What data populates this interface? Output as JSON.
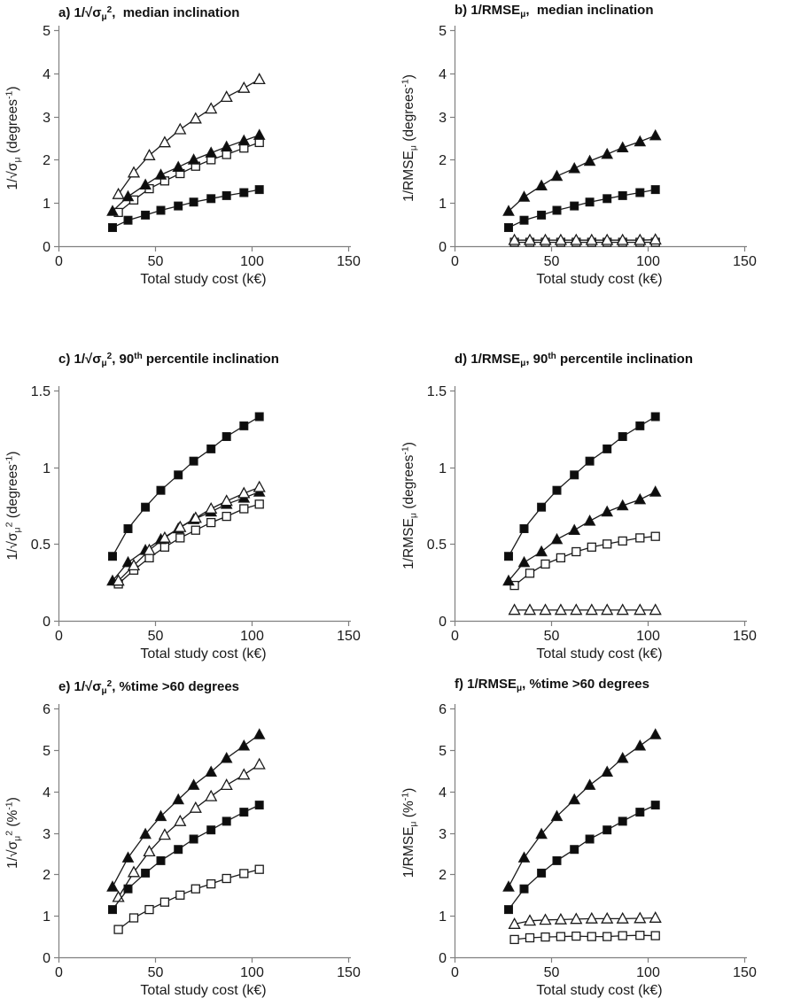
{
  "figure_background": "#ffffff",
  "colors": {
    "series_line": "#1a1a1a",
    "marker_filled": "#0d0d0d",
    "marker_open_fill": "#ffffff",
    "marker_stroke": "#1a1a1a",
    "axis_line": "#808080",
    "text": "#1a1a1a"
  },
  "chart_data": [
    {
      "id": "a",
      "type": "line",
      "title": "a) 1/√σμ²,  median inclination",
      "title_parts": [
        {
          "t": "a) 1/√σ"
        },
        {
          "t": "μ",
          "s": "sub"
        },
        {
          "t": "2",
          "s": "sup"
        },
        {
          "t": ",  median inclination"
        }
      ],
      "xlabel": "Total study cost (k€)",
      "ylabel": "1/√σμ (degrees⁻¹)",
      "ylabel_parts": [
        {
          "t": "1/√σ"
        },
        {
          "t": "μ",
          "s": "sub"
        },
        {
          "t": " (degrees"
        },
        {
          "t": "-1",
          "s": "sup"
        },
        {
          "t": ")"
        }
      ],
      "xlim": [
        0,
        150
      ],
      "xticks": [
        0,
        50,
        100,
        150
      ],
      "ylim": [
        0,
        5
      ],
      "yticks": [
        0,
        1,
        2,
        3,
        4,
        5
      ],
      "grid": false,
      "legend": "none",
      "series": [
        {
          "name": "open-square",
          "marker": "square",
          "fill": "open",
          "x": [
            31,
            39,
            47,
            55,
            63,
            71,
            79,
            87,
            96,
            104
          ],
          "y": [
            0.78,
            1.07,
            1.33,
            1.51,
            1.68,
            1.85,
            2.0,
            2.12,
            2.27,
            2.4
          ]
        },
        {
          "name": "open-triangle",
          "marker": "triangle",
          "fill": "open",
          "x": [
            31,
            39,
            47,
            55,
            63,
            71,
            79,
            87,
            96,
            104
          ],
          "y": [
            1.2,
            1.7,
            2.1,
            2.4,
            2.7,
            2.95,
            3.18,
            3.45,
            3.66,
            3.86
          ]
        },
        {
          "name": "filled-square",
          "marker": "square",
          "fill": "filled",
          "x": [
            28,
            36,
            45,
            53,
            62,
            70,
            79,
            87,
            96,
            104
          ],
          "y": [
            0.43,
            0.6,
            0.72,
            0.83,
            0.93,
            1.02,
            1.1,
            1.17,
            1.24,
            1.31
          ]
        },
        {
          "name": "filled-triangle",
          "marker": "triangle",
          "fill": "filled",
          "x": [
            28,
            36,
            45,
            53,
            62,
            70,
            79,
            87,
            96,
            104
          ],
          "y": [
            0.81,
            1.15,
            1.42,
            1.65,
            1.83,
            2.0,
            2.16,
            2.3,
            2.44,
            2.57
          ]
        }
      ]
    },
    {
      "id": "b",
      "type": "line",
      "title": "b) 1/RMSEμ,  median inclination",
      "title_parts": [
        {
          "t": "b) 1/RMSE"
        },
        {
          "t": "μ",
          "s": "sub"
        },
        {
          "t": ",  median inclination"
        }
      ],
      "xlabel": "Total study cost (k€)",
      "ylabel": "1/RMSEμ (degrees⁻¹)",
      "ylabel_parts": [
        {
          "t": "1/RMSE"
        },
        {
          "t": "μ",
          "s": "sub"
        },
        {
          "t": " (degrees"
        },
        {
          "t": "-1",
          "s": "sup"
        },
        {
          "t": ")"
        }
      ],
      "xlim": [
        0,
        150
      ],
      "xticks": [
        0,
        50,
        100,
        150
      ],
      "ylim": [
        0,
        5
      ],
      "yticks": [
        0,
        1,
        2,
        3,
        4,
        5
      ],
      "grid": false,
      "legend": "none",
      "series": [
        {
          "name": "open-square",
          "marker": "square",
          "fill": "open",
          "x": [
            31,
            39,
            47,
            55,
            63,
            71,
            79,
            87,
            96,
            104
          ],
          "y": [
            0.09,
            0.09,
            0.09,
            0.09,
            0.09,
            0.09,
            0.09,
            0.09,
            0.09,
            0.09
          ]
        },
        {
          "name": "open-triangle",
          "marker": "triangle",
          "fill": "open",
          "x": [
            31,
            39,
            47,
            55,
            63,
            71,
            79,
            87,
            96,
            104
          ],
          "y": [
            0.14,
            0.14,
            0.14,
            0.14,
            0.14,
            0.14,
            0.14,
            0.14,
            0.14,
            0.15
          ]
        },
        {
          "name": "filled-square",
          "marker": "square",
          "fill": "filled",
          "x": [
            28,
            36,
            45,
            53,
            62,
            70,
            79,
            87,
            96,
            104
          ],
          "y": [
            0.43,
            0.6,
            0.72,
            0.83,
            0.93,
            1.02,
            1.1,
            1.17,
            1.24,
            1.31
          ]
        },
        {
          "name": "filled-triangle",
          "marker": "triangle",
          "fill": "filled",
          "x": [
            28,
            36,
            45,
            53,
            62,
            70,
            79,
            87,
            96,
            104
          ],
          "y": [
            0.81,
            1.14,
            1.4,
            1.62,
            1.8,
            1.97,
            2.13,
            2.28,
            2.42,
            2.56
          ]
        }
      ]
    },
    {
      "id": "c",
      "type": "line",
      "title": "c) 1/√σμ², 90th percentile inclination",
      "title_parts": [
        {
          "t": "c) 1/√σ"
        },
        {
          "t": "μ",
          "s": "sub"
        },
        {
          "t": "2",
          "s": "sup"
        },
        {
          "t": ", 90"
        },
        {
          "t": "th",
          "s": "sup"
        },
        {
          "t": " percentile inclination"
        }
      ],
      "xlabel": "Total study cost (k€)",
      "ylabel": "1/√σμ² (degrees⁻¹)",
      "ylabel_parts": [
        {
          "t": "1/√σ"
        },
        {
          "t": "μ",
          "s": "sub"
        },
        {
          "t": "2",
          "s": "sup"
        },
        {
          "t": " (degrees"
        },
        {
          "t": "-1",
          "s": "sup"
        },
        {
          "t": ")"
        }
      ],
      "xlim": [
        0,
        150
      ],
      "xticks": [
        0,
        50,
        100,
        150
      ],
      "ylim": [
        0,
        1.5
      ],
      "yticks": [
        0,
        0.5,
        1,
        1.5
      ],
      "grid": false,
      "legend": "none",
      "series": [
        {
          "name": "open-square",
          "marker": "square",
          "fill": "open",
          "x": [
            31,
            39,
            47,
            55,
            63,
            71,
            79,
            87,
            96,
            104
          ],
          "y": [
            0.24,
            0.33,
            0.41,
            0.48,
            0.54,
            0.59,
            0.64,
            0.68,
            0.73,
            0.76
          ]
        },
        {
          "name": "filled-triangle",
          "marker": "triangle",
          "fill": "filled",
          "x": [
            28,
            36,
            45,
            53,
            62,
            70,
            79,
            87,
            96,
            104
          ],
          "y": [
            0.26,
            0.38,
            0.46,
            0.53,
            0.6,
            0.66,
            0.71,
            0.76,
            0.8,
            0.84
          ]
        },
        {
          "name": "open-triangle",
          "marker": "triangle",
          "fill": "open",
          "x": [
            31,
            39,
            47,
            55,
            63,
            71,
            79,
            87,
            96,
            104
          ],
          "y": [
            0.26,
            0.36,
            0.46,
            0.54,
            0.61,
            0.67,
            0.73,
            0.78,
            0.83,
            0.87
          ]
        },
        {
          "name": "filled-square",
          "marker": "square",
          "fill": "filled",
          "x": [
            28,
            36,
            45,
            53,
            62,
            70,
            79,
            87,
            96,
            104
          ],
          "y": [
            0.42,
            0.6,
            0.74,
            0.85,
            0.95,
            1.04,
            1.12,
            1.2,
            1.27,
            1.33
          ]
        }
      ]
    },
    {
      "id": "d",
      "type": "line",
      "title": "d) 1/RMSEμ, 90th percentile inclination",
      "title_parts": [
        {
          "t": "d) 1/RMSE"
        },
        {
          "t": "μ",
          "s": "sub"
        },
        {
          "t": ", 90"
        },
        {
          "t": "th",
          "s": "sup"
        },
        {
          "t": " percentile inclination"
        }
      ],
      "xlabel": "Total study cost (k€)",
      "ylabel": "1/RMSEμ (degrees⁻¹)",
      "ylabel_parts": [
        {
          "t": "1/RMSE"
        },
        {
          "t": "μ",
          "s": "sub"
        },
        {
          "t": " (degrees"
        },
        {
          "t": "-1",
          "s": "sup"
        },
        {
          "t": ")"
        }
      ],
      "xlim": [
        0,
        150
      ],
      "xticks": [
        0,
        50,
        100,
        150
      ],
      "ylim": [
        0,
        1.5
      ],
      "yticks": [
        0,
        0.5,
        1,
        1.5
      ],
      "grid": false,
      "legend": "none",
      "series": [
        {
          "name": "open-triangle",
          "marker": "triangle",
          "fill": "open",
          "x": [
            31,
            39,
            47,
            55,
            63,
            71,
            79,
            87,
            96,
            104
          ],
          "y": [
            0.07,
            0.07,
            0.07,
            0.07,
            0.07,
            0.07,
            0.07,
            0.07,
            0.07,
            0.07
          ]
        },
        {
          "name": "open-square",
          "marker": "square",
          "fill": "open",
          "x": [
            31,
            39,
            47,
            55,
            63,
            71,
            79,
            87,
            96,
            104
          ],
          "y": [
            0.23,
            0.31,
            0.37,
            0.41,
            0.45,
            0.48,
            0.5,
            0.52,
            0.54,
            0.55
          ]
        },
        {
          "name": "filled-triangle",
          "marker": "triangle",
          "fill": "filled",
          "x": [
            28,
            36,
            45,
            53,
            62,
            70,
            79,
            87,
            96,
            104
          ],
          "y": [
            0.26,
            0.38,
            0.45,
            0.53,
            0.59,
            0.65,
            0.71,
            0.75,
            0.79,
            0.84
          ]
        },
        {
          "name": "filled-square",
          "marker": "square",
          "fill": "filled",
          "x": [
            28,
            36,
            45,
            53,
            62,
            70,
            79,
            87,
            96,
            104
          ],
          "y": [
            0.42,
            0.6,
            0.74,
            0.85,
            0.95,
            1.04,
            1.12,
            1.2,
            1.27,
            1.33
          ]
        }
      ]
    },
    {
      "id": "e",
      "type": "line",
      "title": "e) 1/√σμ², %time >60 degrees",
      "title_parts": [
        {
          "t": "e) 1/√σ"
        },
        {
          "t": "μ",
          "s": "sub"
        },
        {
          "t": "2",
          "s": "sup"
        },
        {
          "t": ", %time >60 degrees"
        }
      ],
      "xlabel": "Total study cost (k€)",
      "ylabel": "1/√σμ² (%⁻¹)",
      "ylabel_parts": [
        {
          "t": "1/√σ"
        },
        {
          "t": "μ",
          "s": "sub"
        },
        {
          "t": "2",
          "s": "sup"
        },
        {
          "t": " (%"
        },
        {
          "t": "-1",
          "s": "sup"
        },
        {
          "t": ")"
        }
      ],
      "xlim": [
        0,
        150
      ],
      "xticks": [
        0,
        50,
        100,
        150
      ],
      "ylim": [
        0,
        6
      ],
      "yticks": [
        0,
        1,
        2,
        3,
        4,
        5,
        6
      ],
      "grid": false,
      "legend": "none",
      "series": [
        {
          "name": "open-square",
          "marker": "square",
          "fill": "open",
          "x": [
            31,
            39,
            47,
            55,
            63,
            71,
            79,
            87,
            96,
            104
          ],
          "y": [
            0.67,
            0.95,
            1.15,
            1.33,
            1.5,
            1.65,
            1.77,
            1.9,
            2.02,
            2.12
          ]
        },
        {
          "name": "open-triangle",
          "marker": "triangle",
          "fill": "open",
          "x": [
            31,
            39,
            47,
            55,
            63,
            71,
            79,
            87,
            96,
            104
          ],
          "y": [
            1.45,
            2.05,
            2.55,
            2.95,
            3.28,
            3.6,
            3.88,
            4.15,
            4.4,
            4.65
          ]
        },
        {
          "name": "filled-square",
          "marker": "square",
          "fill": "filled",
          "x": [
            28,
            36,
            45,
            53,
            62,
            70,
            79,
            87,
            96,
            104
          ],
          "y": [
            1.15,
            1.65,
            2.03,
            2.33,
            2.6,
            2.85,
            3.07,
            3.28,
            3.5,
            3.67
          ]
        },
        {
          "name": "filled-triangle",
          "marker": "triangle",
          "fill": "filled",
          "x": [
            28,
            36,
            45,
            53,
            62,
            70,
            79,
            87,
            96,
            104
          ],
          "y": [
            1.7,
            2.4,
            2.97,
            3.4,
            3.8,
            4.15,
            4.47,
            4.8,
            5.1,
            5.37
          ]
        }
      ]
    },
    {
      "id": "f",
      "type": "line",
      "title": "f) 1/RMSEμ, %time >60 degrees",
      "title_parts": [
        {
          "t": "f) 1/RMSE"
        },
        {
          "t": "μ",
          "s": "sub"
        },
        {
          "t": ", %time >60 degrees"
        }
      ],
      "xlabel": "Total study cost (k€)",
      "ylabel": "1/RMSEμ (%⁻¹)",
      "ylabel_parts": [
        {
          "t": "1/RMSE"
        },
        {
          "t": "μ",
          "s": "sub"
        },
        {
          "t": " (%"
        },
        {
          "t": "-1",
          "s": "sup"
        },
        {
          "t": ")"
        }
      ],
      "xlim": [
        0,
        150
      ],
      "xticks": [
        0,
        50,
        100,
        150
      ],
      "ylim": [
        0,
        6
      ],
      "yticks": [
        0,
        1,
        2,
        3,
        4,
        5,
        6
      ],
      "grid": false,
      "legend": "none",
      "series": [
        {
          "name": "open-square",
          "marker": "square",
          "fill": "open",
          "x": [
            31,
            39,
            47,
            55,
            63,
            71,
            79,
            87,
            96,
            104
          ],
          "y": [
            0.43,
            0.47,
            0.49,
            0.5,
            0.51,
            0.5,
            0.5,
            0.52,
            0.53,
            0.52
          ]
        },
        {
          "name": "open-triangle",
          "marker": "triangle",
          "fill": "open",
          "x": [
            31,
            39,
            47,
            55,
            63,
            71,
            79,
            87,
            96,
            104
          ],
          "y": [
            0.8,
            0.88,
            0.9,
            0.91,
            0.92,
            0.93,
            0.93,
            0.93,
            0.94,
            0.95
          ]
        },
        {
          "name": "filled-square",
          "marker": "square",
          "fill": "filled",
          "x": [
            28,
            36,
            45,
            53,
            62,
            70,
            79,
            87,
            96,
            104
          ],
          "y": [
            1.15,
            1.65,
            2.03,
            2.33,
            2.6,
            2.85,
            3.07,
            3.28,
            3.5,
            3.67
          ]
        },
        {
          "name": "filled-triangle",
          "marker": "triangle",
          "fill": "filled",
          "x": [
            28,
            36,
            45,
            53,
            62,
            70,
            79,
            87,
            96,
            104
          ],
          "y": [
            1.7,
            2.4,
            2.97,
            3.4,
            3.8,
            4.15,
            4.47,
            4.8,
            5.1,
            5.37
          ]
        }
      ]
    }
  ]
}
